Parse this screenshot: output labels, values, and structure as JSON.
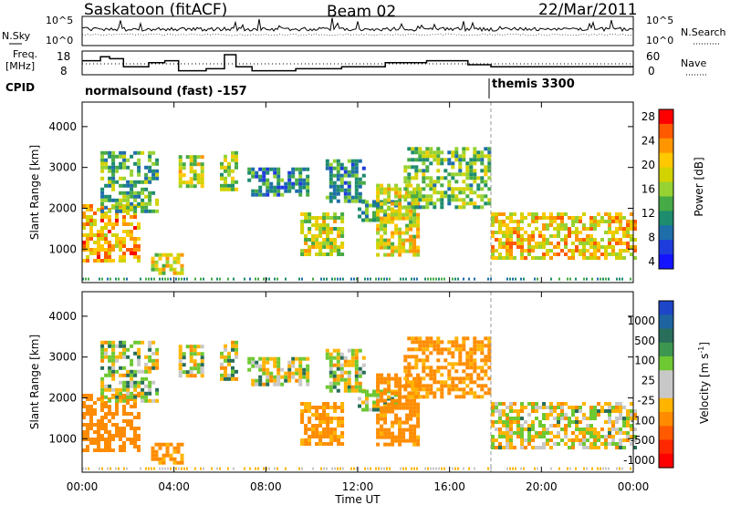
{
  "header": {
    "station": "Saskatoon (fitACF)",
    "beam": "Beam 02",
    "date": "22/Mar/2011"
  },
  "noise_panel": {
    "left_label": "N.Sky",
    "right_label": "N.Search",
    "left_ticks": [
      "10^5",
      "10^0"
    ],
    "right_ticks": [
      "10^5",
      "10^0"
    ]
  },
  "freq_panel": {
    "label_line1": "Freq.",
    "label_line2": "[MHz]",
    "left_ticks": [
      "18",
      "8"
    ],
    "right_ticks": [
      "60",
      "0"
    ],
    "right_label": "Nave"
  },
  "cpid": {
    "label": "CPID",
    "program_1": "normalsound (fast) -157",
    "program_2": "themis 3300"
  },
  "axes": {
    "ylabel": "Slant Range [km]",
    "xlabel": "Time UT",
    "y_ticks": [
      "1000",
      "2000",
      "3000",
      "4000"
    ],
    "x_ticks": [
      "00:00",
      "04:00",
      "08:00",
      "12:00",
      "16:00",
      "20:00",
      "00:00"
    ]
  },
  "power_bar": {
    "label": "Power [dB]",
    "ticks": [
      "28",
      "24",
      "20",
      "16",
      "12",
      "8",
      "4"
    ],
    "colors": [
      "#ff0000",
      "#ff5a00",
      "#ff9600",
      "#ffc800",
      "#d2d200",
      "#96d232",
      "#46aa46",
      "#1e8c6e",
      "#1e6eaa",
      "#1e3cdc",
      "#1414ff"
    ]
  },
  "velocity_bar": {
    "label": "Velocity [m s",
    "label_sup": "-1",
    "label_end": "]",
    "ticks": [
      "1000",
      "500",
      "100",
      "25",
      "-25",
      "-100",
      "-500",
      "-1000"
    ],
    "colors": [
      "#1e46c8",
      "#1e64a0",
      "#286e5a",
      "#3c9650",
      "#6ec832",
      "#c8c8c8",
      "#c8c8c8",
      "#ffb400",
      "#ff8c00",
      "#ff5a00",
      "#ff2800",
      "#ff0000"
    ]
  },
  "chart_data": {
    "type": "heatmap",
    "title": "Saskatoon (fitACF) Beam 02 22/Mar/2011",
    "xlabel": "Time UT",
    "ylabel": "Slant Range [km]",
    "x_range_hours": [
      0,
      24
    ],
    "y_range_km": [
      180,
      4600
    ],
    "program_change_hour": 17.8,
    "frequency_mhz_steps": [
      {
        "start": 0.0,
        "end": 0.8,
        "mhz": 15
      },
      {
        "start": 0.8,
        "end": 1.2,
        "mhz": 17
      },
      {
        "start": 1.2,
        "end": 1.8,
        "mhz": 16
      },
      {
        "start": 1.8,
        "end": 2.9,
        "mhz": 12
      },
      {
        "start": 2.9,
        "end": 3.6,
        "mhz": 14
      },
      {
        "start": 3.6,
        "end": 4.2,
        "mhz": 15
      },
      {
        "start": 4.2,
        "end": 5.4,
        "mhz": 10
      },
      {
        "start": 5.4,
        "end": 6.2,
        "mhz": 11
      },
      {
        "start": 6.2,
        "end": 6.7,
        "mhz": 18
      },
      {
        "start": 6.7,
        "end": 7.4,
        "mhz": 12
      },
      {
        "start": 7.4,
        "end": 9.3,
        "mhz": 10
      },
      {
        "start": 9.3,
        "end": 11.3,
        "mhz": 11
      },
      {
        "start": 11.3,
        "end": 13.2,
        "mhz": 12
      },
      {
        "start": 13.2,
        "end": 15.0,
        "mhz": 14
      },
      {
        "start": 15.0,
        "end": 16.8,
        "mhz": 15
      },
      {
        "start": 16.8,
        "end": 17.8,
        "mhz": 13
      },
      {
        "start": 17.8,
        "end": 24.0,
        "mhz": 12
      }
    ],
    "echo_regions": [
      {
        "t0": 0.0,
        "t1": 2.4,
        "r0": 700,
        "r1": 2100,
        "power_db": 24,
        "velocity": -300
      },
      {
        "t0": 0.8,
        "t1": 3.2,
        "r0": 1900,
        "r1": 3400,
        "power_db": 12,
        "velocity": 10
      },
      {
        "t0": 3.0,
        "t1": 4.3,
        "r0": 400,
        "r1": 900,
        "power_db": 20,
        "velocity": -150
      },
      {
        "t0": 4.2,
        "t1": 5.2,
        "r0": 2500,
        "r1": 3300,
        "power_db": 18,
        "velocity": 10
      },
      {
        "t0": 6.0,
        "t1": 6.7,
        "r0": 2500,
        "r1": 3400,
        "power_db": 16,
        "velocity": 10
      },
      {
        "t0": 7.2,
        "t1": 9.8,
        "r0": 2300,
        "r1": 3000,
        "power_db": 10,
        "velocity": 10
      },
      {
        "t0": 9.5,
        "t1": 11.3,
        "r0": 900,
        "r1": 1900,
        "power_db": 18,
        "velocity": -150
      },
      {
        "t0": 10.6,
        "t1": 12.3,
        "r0": 2200,
        "r1": 3200,
        "power_db": 10,
        "velocity": 10
      },
      {
        "t0": 12.0,
        "t1": 13.8,
        "r0": 1700,
        "r1": 2200,
        "power_db": 12,
        "velocity": 10
      },
      {
        "t0": 12.8,
        "t1": 14.6,
        "r0": 900,
        "r1": 2600,
        "power_db": 20,
        "velocity": -200
      },
      {
        "t0": 14.0,
        "t1": 17.8,
        "r0": 2000,
        "r1": 3500,
        "power_db": 14,
        "velocity": -150
      },
      {
        "t0": 17.8,
        "t1": 24.0,
        "r0": 800,
        "r1": 1900,
        "power_db": 22,
        "velocity": -10
      }
    ]
  }
}
